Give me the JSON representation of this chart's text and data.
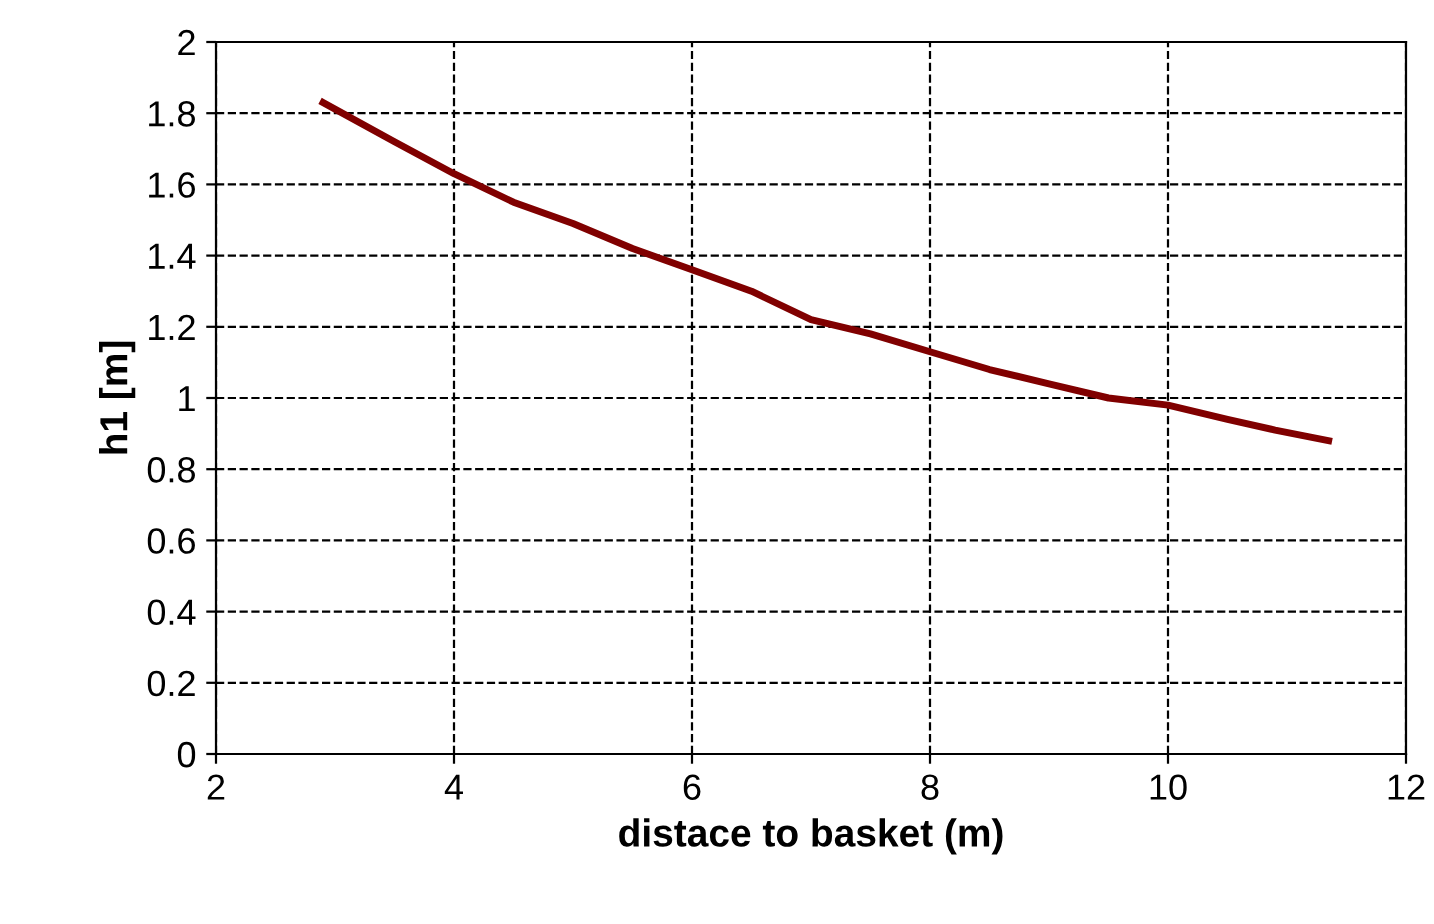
{
  "chart_data": {
    "type": "line",
    "xlabel": "distace to basket (m)",
    "ylabel": "h1 [m]",
    "series": [
      {
        "color": "#800000",
        "x": [
          2.9,
          3.5,
          4.0,
          4.5,
          5.0,
          5.5,
          6.0,
          6.5,
          7.0,
          7.5,
          8.0,
          8.5,
          9.0,
          9.5,
          10.0,
          10.5,
          10.9,
          11.35
        ],
        "values": [
          1.83,
          1.72,
          1.63,
          1.55,
          1.49,
          1.42,
          1.36,
          1.3,
          1.22,
          1.18,
          1.13,
          1.08,
          1.04,
          1.0,
          0.98,
          0.94,
          0.91,
          0.88
        ]
      }
    ],
    "xlim": [
      2,
      12
    ],
    "xticks": [
      2,
      4,
      6,
      8,
      10,
      12
    ],
    "ylim": [
      0,
      2
    ],
    "yticks": [
      0,
      0.2,
      0.4,
      0.6,
      0.8,
      1,
      1.2,
      1.4,
      1.6,
      1.8,
      2
    ],
    "grid": true,
    "marker": "none",
    "line_style": "solid"
  }
}
